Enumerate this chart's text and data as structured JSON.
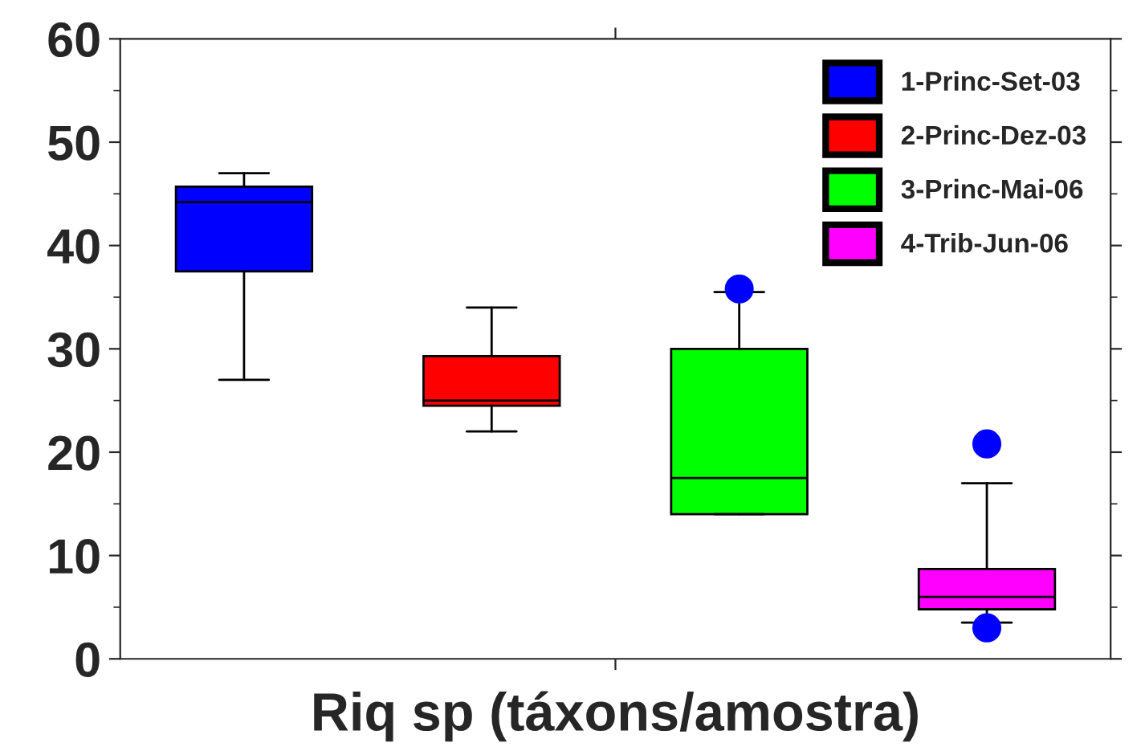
{
  "chart_data": {
    "type": "box",
    "xlabel": "Riq sp (táxons/amostra)",
    "categories": [
      null,
      null,
      null,
      null
    ],
    "ylim": [
      0,
      60
    ],
    "yticks": [
      0,
      10,
      20,
      30,
      40,
      50,
      60
    ],
    "tick_labels": "y",
    "grid": false,
    "legend": "top right",
    "series": [
      {
        "name": "1-Princ-Set-03",
        "color": "#0000ff",
        "boxes": [
          {
            "low": 27,
            "q1": 37.5,
            "median": 44.2,
            "q3": 45.7,
            "high": 47
          },
          null,
          null,
          null
        ]
      },
      {
        "name": "2-Princ-Dez-03",
        "color": "#ff0000",
        "boxes": [
          null,
          {
            "low": 22,
            "q1": 24.5,
            "median": 25,
            "q3": 29.3,
            "high": 34
          },
          null,
          null
        ]
      },
      {
        "name": "3-Princ-Mai-06",
        "color": "#00ff00",
        "boxes": [
          null,
          null,
          {
            "low": 14,
            "q1": 14,
            "median": 17.5,
            "q3": 30,
            "high": 35.5,
            "outliers": [
              35.8
            ]
          },
          null
        ]
      },
      {
        "name": "4-Trib-Jun-06",
        "color": "#ff00ff",
        "boxes": [
          null,
          null,
          null,
          {
            "low": 3.5,
            "q1": 4.8,
            "median": 6,
            "q3": 8.7,
            "high": 17,
            "outliers": [
              20.8,
              3
            ]
          }
        ]
      }
    ]
  }
}
